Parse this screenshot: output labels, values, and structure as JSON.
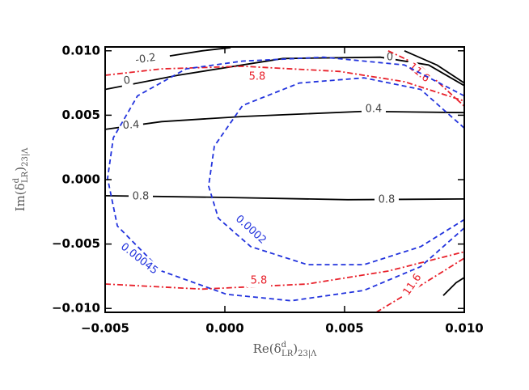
{
  "chart_data": {
    "type": "contour",
    "xlabel": {
      "base": "Re(δ",
      "sup": "d",
      "sub": "LR",
      "close": ")",
      "sub2": "23|Λ"
    },
    "ylabel": {
      "base": "Im(δ",
      "sup": "d",
      "sub": "LR",
      "close": ")",
      "sub2": "23|Λ"
    },
    "xlim": [
      -0.005,
      0.01
    ],
    "xticks": [
      {
        "value": -0.005,
        "label": "−0.005"
      },
      {
        "value": 0,
        "label": "0.000"
      },
      {
        "value": 0.005,
        "label": "0.005"
      },
      {
        "value": 0.01,
        "label": "0.010"
      }
    ],
    "ylim": [
      -0.0103,
      0.0103
    ],
    "yticks": [
      {
        "value": -0.01,
        "label": "−0.010"
      },
      {
        "value": -0.005,
        "label": "−0.005"
      },
      {
        "value": 0,
        "label": "0.000"
      },
      {
        "value": 0.005,
        "label": "0.005"
      },
      {
        "value": 0.01,
        "label": "0.010"
      }
    ],
    "contours": [
      {
        "level": 0.8,
        "color": "#000000",
        "style": "solid",
        "x": [
          -0.005,
          0.0,
          0.00514,
          0.01
        ],
        "y": [
          -0.00125,
          -0.00138,
          -0.00156,
          -0.0015
        ]
      },
      {
        "level": 0.4,
        "color": "#000000",
        "style": "solid",
        "x": [
          -0.005,
          -0.00264,
          0.00074,
          0.00581,
          0.01
        ],
        "y": [
          0.0039,
          0.0045,
          0.0049,
          0.0053,
          0.0052
        ]
      },
      {
        "level": 0,
        "color": "#000000",
        "style": "solid",
        "x": [
          -0.005,
          -0.00196,
          0.00243,
          0.00649,
          0.00851,
          0.01
        ],
        "y": [
          0.007,
          0.0081,
          0.0094,
          0.0095,
          0.0089,
          0.0073
        ]
      },
      {
        "level": -0.2,
        "color": "#000000",
        "style": "solid",
        "x": [
          -0.0023,
          -0.00095,
          0.00024
        ],
        "y": [
          0.0096,
          0.01,
          0.01025
        ]
      },
      {
        "color": "#000000",
        "style": "solid",
        "x": [
          0.0075,
          0.00885,
          0.01
        ],
        "y": [
          0.01,
          0.0089,
          0.0075
        ]
      },
      {
        "color": "#000000",
        "style": "solid",
        "x": [
          0.00912,
          0.00966,
          0.01
        ],
        "y": [
          -0.009,
          -0.008,
          -0.0076
        ]
      },
      {
        "level": 5.8,
        "color": "#e8202a",
        "style": "dashdot",
        "x": [
          -0.005,
          -0.00264,
          0.00074,
          0.0048,
          0.0075,
          0.01
        ],
        "y": [
          0.0081,
          0.0086,
          0.0088,
          0.0084,
          0.0076,
          0.0061
        ]
      },
      {
        "level": 5.8,
        "color": "#e8202a",
        "style": "dashdot",
        "x": [
          -0.005,
          -0.00095,
          0.00345,
          0.00682,
          0.01
        ],
        "y": [
          -0.0081,
          -0.0085,
          -0.0081,
          -0.0071,
          -0.0056
        ]
      },
      {
        "level": 11.6,
        "color": "#e8202a",
        "style": "dashdot",
        "x": [
          0.00682,
          0.00818,
          0.01
        ],
        "y": [
          0.01,
          0.0088,
          0.0057
        ]
      },
      {
        "level": 11.6,
        "color": "#e8202a",
        "style": "dashdot",
        "x": [
          0.00632,
          0.00784,
          0.01
        ],
        "y": [
          -0.0103,
          -0.0086,
          -0.0061
        ]
      },
      {
        "level": 0.00045,
        "color": "#2233dd",
        "style": "dashed",
        "x": [
          0.01,
          0.0075,
          0.00412,
          0.00074,
          -0.00162,
          -0.00365,
          -0.00466,
          -0.0049,
          -0.00449,
          -0.00264,
          7e-05,
          0.00277,
          0.00581,
          0.00818,
          0.01
        ],
        "y": [
          0.0065,
          0.0089,
          0.0095,
          0.0092,
          0.0086,
          0.0065,
          0.00325,
          0.0001,
          -0.0036,
          -0.0071,
          -0.0089,
          -0.0094,
          -0.0086,
          -0.00675,
          -0.00375
        ]
      },
      {
        "level": 0.0002,
        "color": "#2233dd",
        "style": "dashed",
        "x": [
          0.01,
          0.00818,
          0.00581,
          0.00311,
          0.00074,
          -0.00044,
          -0.00068,
          -0.00027,
          0.00108,
          0.00345,
          0.00581,
          0.00818,
          0.01
        ],
        "y": [
          0.004,
          0.007,
          0.0079,
          0.0075,
          0.00575,
          0.0026,
          -0.0005,
          -0.003,
          -0.0052,
          -0.0066,
          -0.0066,
          -0.0052,
          -0.0031
        ]
      }
    ]
  }
}
